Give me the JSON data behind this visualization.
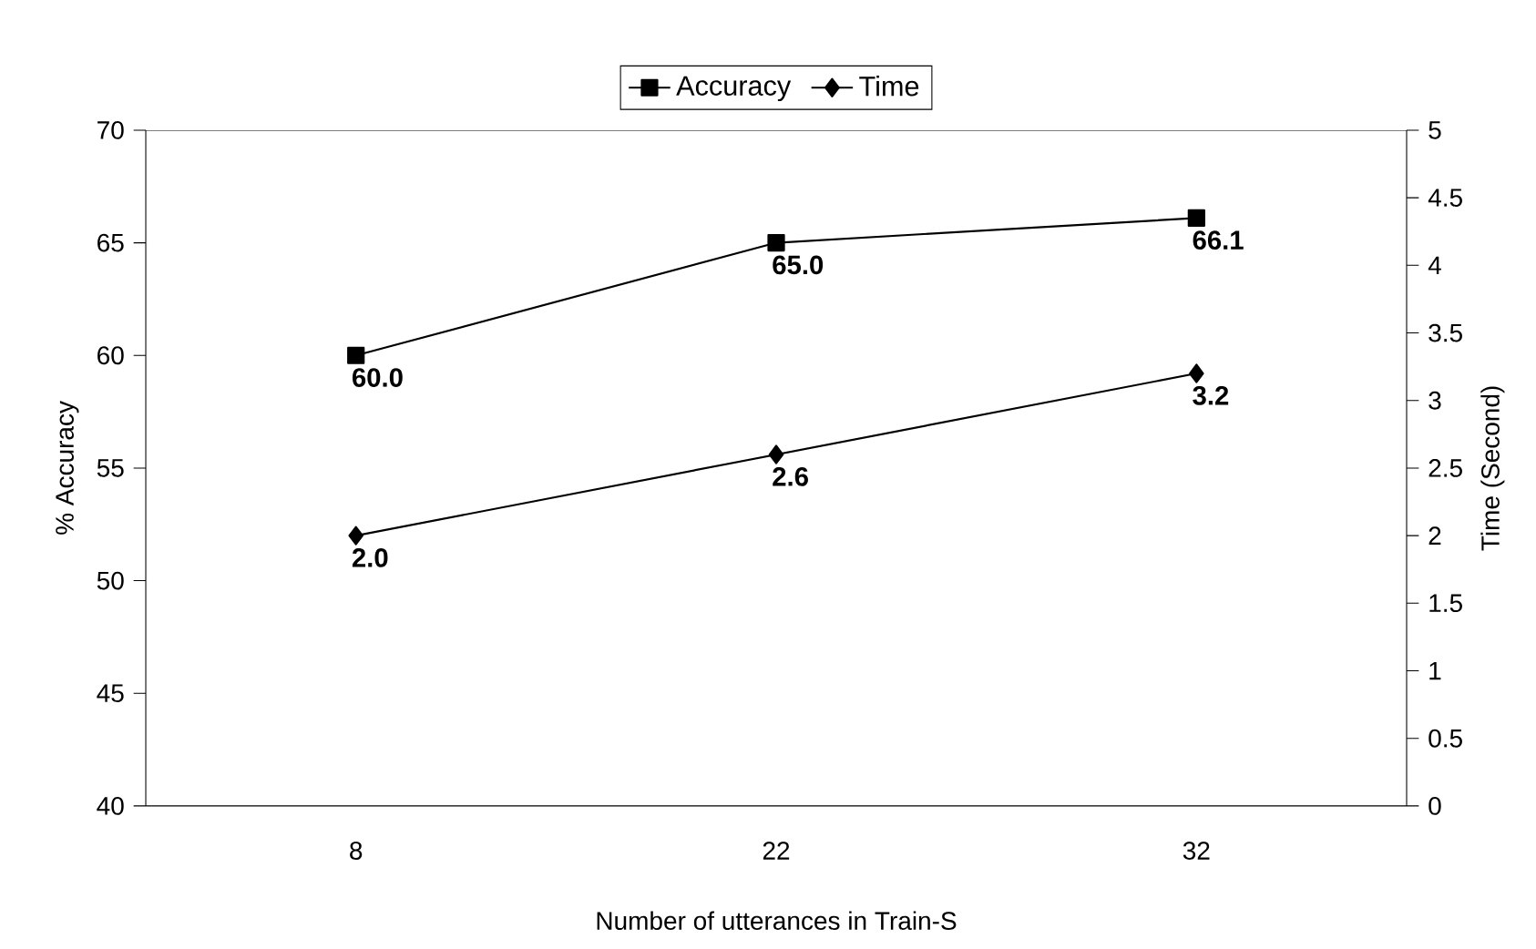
{
  "chart_data": {
    "type": "line",
    "xlabel": "Number of utterances in Train-S",
    "ylabel": "% Accuracy",
    "y2label": "Time (Second)",
    "categories": [
      "8",
      "22",
      "32"
    ],
    "series": [
      {
        "name": "Accuracy",
        "color": "#000000",
        "marker": "square",
        "values": [
          60.0,
          65.0,
          66.1
        ],
        "value_labels": [
          "60.0",
          "65.0",
          "66.1"
        ]
      },
      {
        "name": "Time",
        "color": "#000000",
        "marker": "diamond",
        "axis": "y2",
        "values": [
          2.0,
          2.6,
          3.2
        ],
        "value_labels": [
          "2.0",
          "2.6",
          "3.2"
        ]
      }
    ],
    "ylim": [
      40,
      70
    ],
    "yticks": [
      40,
      45,
      50,
      55,
      60,
      65,
      70
    ],
    "y2lim": [
      0,
      5
    ],
    "y2ticks": [
      0,
      0.5,
      1,
      1.5,
      2,
      2.5,
      3,
      3.5,
      4,
      4.5,
      5
    ],
    "legend": "top",
    "grid": false,
    "line_style": "solid"
  }
}
